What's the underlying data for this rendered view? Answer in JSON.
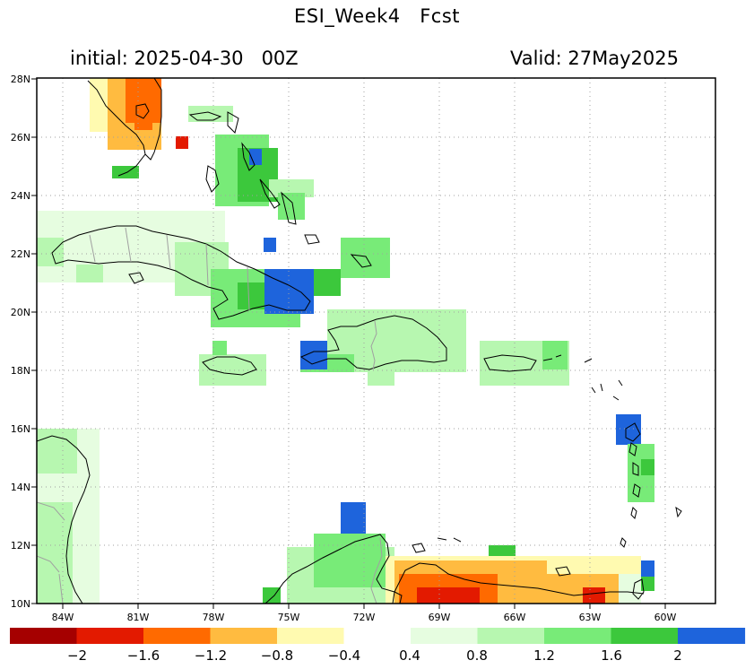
{
  "title": "ESI_Week4   Fcst",
  "initial_label": "initial: 2025-04-30   00Z",
  "valid_label": "Valid: 27May2025",
  "lat_labels": [
    "28N",
    "26N",
    "24N",
    "22N",
    "20N",
    "18N",
    "16N",
    "14N",
    "12N",
    "10N"
  ],
  "lon_labels": [
    "84W",
    "81W",
    "78W",
    "75W",
    "72W",
    "69W",
    "66W",
    "63W",
    "60W"
  ],
  "colorbar": {
    "colors": [
      "#a50000",
      "#e31a00",
      "#ff6a00",
      "#ffbb40",
      "#fffab0",
      "#ffffff",
      "#e6fde0",
      "#b7f7b0",
      "#78eb78",
      "#3cc83c",
      "#1e64dc"
    ],
    "labels": [
      "−2",
      "−1.6",
      "−1.2",
      "−0.8",
      "−0.4",
      "0.4",
      "0.8",
      "1.2",
      "1.6",
      "2"
    ]
  },
  "colors": {
    "coast": "#000000",
    "border": "#a0a0a0",
    "grid": "#a0a0a0"
  }
}
